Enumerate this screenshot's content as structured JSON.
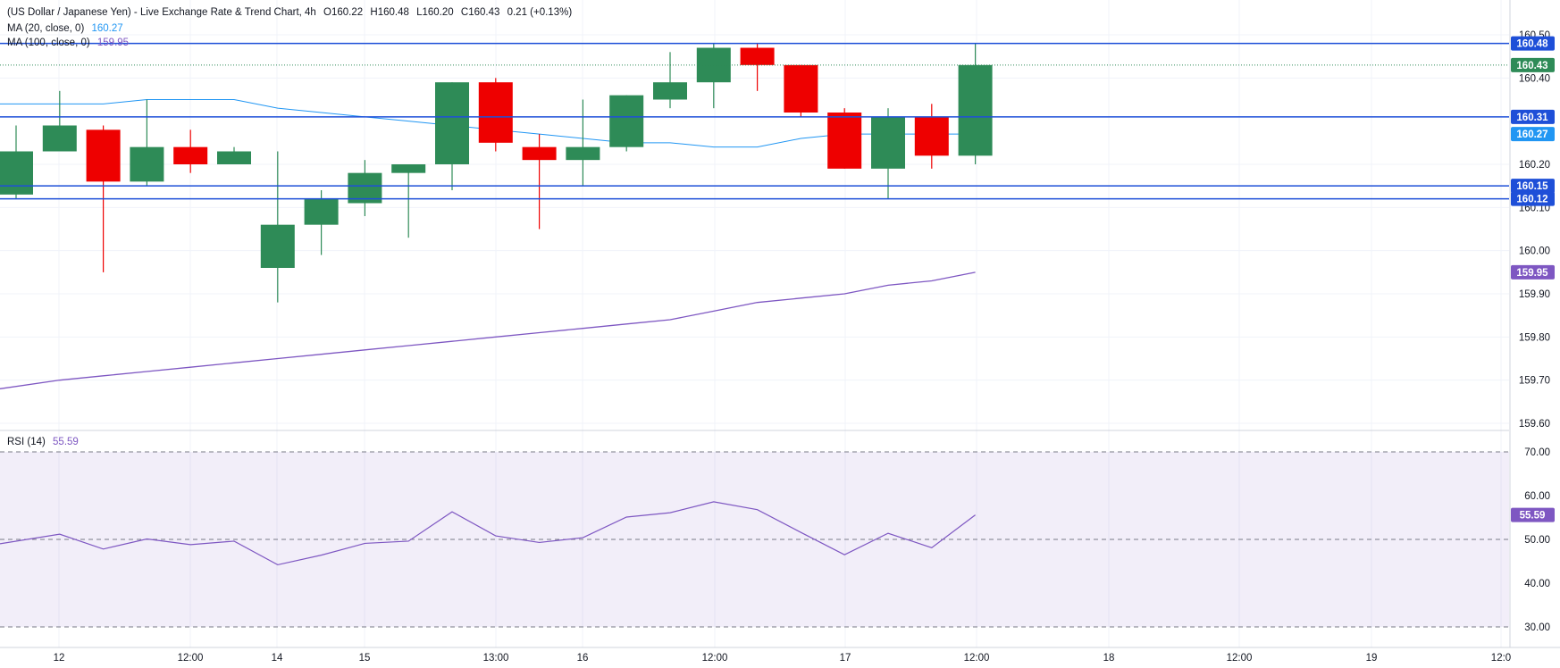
{
  "header": {
    "symbol": "(US Dollar / Japanese Yen) - Live Exchange Rate & Trend Chart, 4h",
    "open_label": "O",
    "open": "160.22",
    "high_label": "H",
    "high": "160.48",
    "low_label": "L",
    "low": "160.20",
    "close_label": "C",
    "close": "160.43",
    "change": "0.21 (+0.13%)"
  },
  "indicators": {
    "ma20": {
      "label": "MA (20, close, 0)",
      "value": "160.27",
      "color": "#2196f3"
    },
    "ma100": {
      "label": "MA (100, close, 0)",
      "value": "159.95",
      "color": "#7e57c2"
    },
    "rsi": {
      "label": "RSI (14)",
      "value": "55.59",
      "color": "#7e57c2"
    }
  },
  "colors": {
    "up": "#2e8b57",
    "down": "#ee0000",
    "level": "#1e4fd8",
    "grid": "#f0f3fa"
  },
  "chart_data": {
    "type": "candlestick",
    "price_axis": {
      "ylim": [
        159.58,
        160.51
      ],
      "ticks": [
        "160.50",
        "160.40",
        "160.20",
        "160.10",
        "160.00",
        "159.90",
        "159.80",
        "159.70",
        "159.60"
      ]
    },
    "time_axis": {
      "labels": [
        "12",
        "12:00",
        "14",
        "15",
        "13:00",
        "16",
        "12:00",
        "17",
        "12:00",
        "18",
        "12:00",
        "19",
        "12:0"
      ]
    },
    "candles": [
      {
        "o": 160.13,
        "h": 160.29,
        "l": 160.12,
        "c": 160.23
      },
      {
        "o": 160.23,
        "h": 160.37,
        "l": 160.23,
        "c": 160.29
      },
      {
        "o": 160.28,
        "h": 160.29,
        "l": 159.95,
        "c": 160.16
      },
      {
        "o": 160.16,
        "h": 160.35,
        "l": 160.15,
        "c": 160.24
      },
      {
        "o": 160.24,
        "h": 160.28,
        "l": 160.18,
        "c": 160.2
      },
      {
        "o": 160.2,
        "h": 160.24,
        "l": 160.2,
        "c": 160.23
      },
      {
        "o": 159.96,
        "h": 160.23,
        "l": 159.88,
        "c": 160.06
      },
      {
        "o": 160.06,
        "h": 160.14,
        "l": 159.99,
        "c": 160.12
      },
      {
        "o": 160.11,
        "h": 160.21,
        "l": 160.08,
        "c": 160.18
      },
      {
        "o": 160.18,
        "h": 160.2,
        "l": 160.03,
        "c": 160.2
      },
      {
        "o": 160.2,
        "h": 160.39,
        "l": 160.14,
        "c": 160.39
      },
      {
        "o": 160.39,
        "h": 160.4,
        "l": 160.23,
        "c": 160.25
      },
      {
        "o": 160.24,
        "h": 160.27,
        "l": 160.05,
        "c": 160.21
      },
      {
        "o": 160.21,
        "h": 160.35,
        "l": 160.15,
        "c": 160.24
      },
      {
        "o": 160.24,
        "h": 160.36,
        "l": 160.23,
        "c": 160.36
      },
      {
        "o": 160.35,
        "h": 160.46,
        "l": 160.33,
        "c": 160.39
      },
      {
        "o": 160.39,
        "h": 160.48,
        "l": 160.33,
        "c": 160.47
      },
      {
        "o": 160.47,
        "h": 160.48,
        "l": 160.37,
        "c": 160.43
      },
      {
        "o": 160.43,
        "h": 160.43,
        "l": 160.31,
        "c": 160.32
      },
      {
        "o": 160.32,
        "h": 160.33,
        "l": 160.19,
        "c": 160.19
      },
      {
        "o": 160.19,
        "h": 160.33,
        "l": 160.12,
        "c": 160.31
      },
      {
        "o": 160.31,
        "h": 160.34,
        "l": 160.19,
        "c": 160.22
      },
      {
        "o": 160.22,
        "h": 160.48,
        "l": 160.2,
        "c": 160.43
      }
    ],
    "ma20_values": [
      160.34,
      160.34,
      160.34,
      160.35,
      160.35,
      160.35,
      160.33,
      160.32,
      160.31,
      160.3,
      160.29,
      160.28,
      160.27,
      160.26,
      160.25,
      160.25,
      160.24,
      160.24,
      160.26,
      160.27,
      160.27,
      160.27,
      160.27
    ],
    "ma100_values": [
      159.68,
      159.7,
      159.71,
      159.72,
      159.73,
      159.74,
      159.75,
      159.76,
      159.77,
      159.78,
      159.79,
      159.8,
      159.81,
      159.82,
      159.83,
      159.84,
      159.86,
      159.88,
      159.89,
      159.9,
      159.92,
      159.93,
      159.95
    ],
    "levels": [
      {
        "value": 160.48,
        "label": "160.48"
      },
      {
        "value": 160.31,
        "label": "160.31"
      },
      {
        "value": 160.15,
        "label": "160.15"
      },
      {
        "value": 160.12,
        "label": "160.12"
      }
    ],
    "current_price": {
      "value": 160.43,
      "label": "160.43"
    },
    "ma20_tag": "160.27",
    "ma100_tag": "159.95",
    "rsi": {
      "ylim": [
        28,
        72
      ],
      "ticks": [
        "70.00",
        "60.00",
        "50.00",
        "40.00",
        "30.00"
      ],
      "band": [
        30,
        70
      ],
      "midline": 50,
      "values": [
        49,
        51.2,
        47.8,
        50.1,
        48.8,
        49.6,
        44.2,
        46.4,
        49.1,
        49.6,
        56.3,
        50.8,
        49.3,
        50.4,
        55.1,
        56.1,
        58.6,
        56.8,
        51.6,
        46.5,
        51.4,
        48.1,
        55.59
      ],
      "tag": "55.59"
    }
  }
}
